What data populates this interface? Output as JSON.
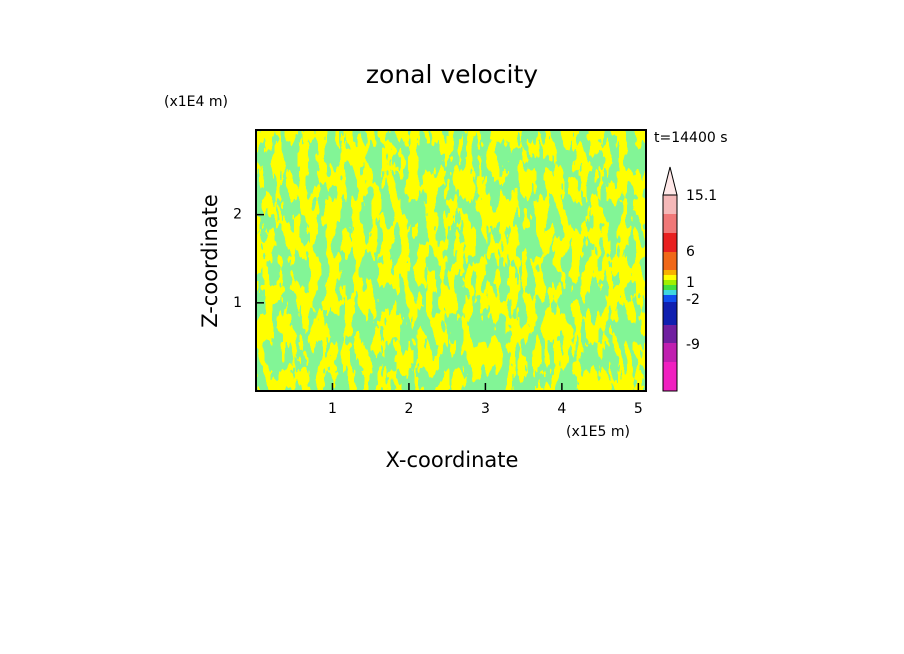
{
  "chart_data": {
    "type": "contour",
    "title": "zonal velocity",
    "x_label": "X-coordinate",
    "y_label": "Z-coordinate",
    "x_unit": "(x1E5 m)",
    "y_unit": "(x1E4 m)",
    "time_label": "t=14400 s",
    "xlim": [
      0,
      5.1
    ],
    "ylim": [
      0,
      2.96
    ],
    "xticks": [
      1,
      2,
      3,
      4,
      5
    ],
    "yticks": [
      1,
      2
    ],
    "field_colors": [
      "#3ae84e",
      "#ffff00"
    ],
    "colorbar": {
      "colors": [
        "#ffe8e8",
        "#f5b8b8",
        "#f07878",
        "#e82020",
        "#f06818",
        "#f8b000",
        "#ffff00",
        "#a0f000",
        "#40e040",
        "#40d8e0",
        "#1050f0",
        "#1020b0",
        "#7020a0",
        "#c020b0",
        "#f020c0"
      ],
      "ticks": [
        15.1,
        6,
        1,
        -2,
        -9
      ]
    }
  }
}
